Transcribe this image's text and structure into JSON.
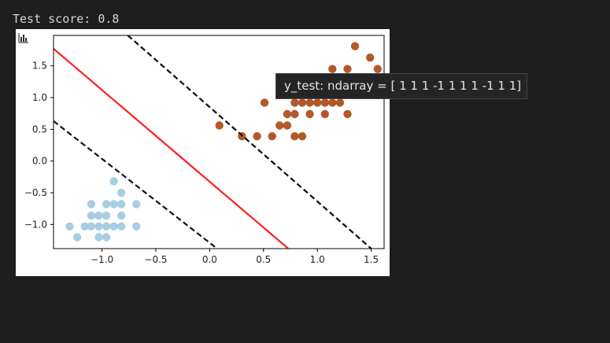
{
  "output": {
    "text": "Test score: 0.8"
  },
  "plot_toolbar": {
    "icon": "bar-chart-icon"
  },
  "tooltip": {
    "text": "y_test: ndarray = [ 1 1 1 -1 1 1 1 -1 1 1]"
  },
  "colors": {
    "class_neg": "#a6cee3",
    "class_pos": "#b15928",
    "decision_boundary": "#ff2020",
    "margin": "#111111",
    "background": "#1e1e1e"
  },
  "chart_data": {
    "type": "scatter",
    "xlim": [
      -1.45,
      1.62
    ],
    "ylim": [
      -1.38,
      1.98
    ],
    "x_ticks": [
      "−1.0",
      "−0.5",
      "0.0",
      "0.5",
      "1.0",
      "1.5"
    ],
    "x_tick_values": [
      -1.0,
      -0.5,
      0.0,
      0.5,
      1.0,
      1.5
    ],
    "y_ticks": [
      "1.5",
      "1.0",
      "0.5",
      "0.0",
      "−0.5",
      "−1.0"
    ],
    "y_tick_values": [
      1.5,
      1.0,
      0.5,
      0.0,
      -0.5,
      -1.0
    ],
    "grid": false,
    "series": [
      {
        "color_key": "class_neg",
        "points": [
          [
            -1.3,
            -1.03
          ],
          [
            -1.23,
            -1.2
          ],
          [
            -1.16,
            -1.03
          ],
          [
            -1.1,
            -0.68
          ],
          [
            -1.1,
            -0.86
          ],
          [
            -1.1,
            -1.03
          ],
          [
            -1.03,
            -0.86
          ],
          [
            -1.03,
            -1.03
          ],
          [
            -1.03,
            -1.2
          ],
          [
            -0.96,
            -0.68
          ],
          [
            -0.96,
            -0.86
          ],
          [
            -0.96,
            -1.03
          ],
          [
            -0.96,
            -1.2
          ],
          [
            -0.89,
            -0.32
          ],
          [
            -0.89,
            -0.68
          ],
          [
            -0.89,
            -1.03
          ],
          [
            -0.82,
            -0.5
          ],
          [
            -0.82,
            -0.68
          ],
          [
            -0.82,
            -0.86
          ],
          [
            -0.82,
            -1.03
          ],
          [
            -0.68,
            -0.68
          ],
          [
            -0.68,
            -1.03
          ]
        ]
      },
      {
        "color_key": "class_pos",
        "points": [
          [
            0.09,
            0.56
          ],
          [
            0.3,
            0.39
          ],
          [
            0.44,
            0.39
          ],
          [
            0.51,
            0.92
          ],
          [
            0.58,
            0.39
          ],
          [
            0.65,
            0.56
          ],
          [
            0.72,
            0.56
          ],
          [
            0.72,
            0.74
          ],
          [
            0.79,
            0.92
          ],
          [
            0.79,
            0.74
          ],
          [
            0.79,
            0.39
          ],
          [
            0.86,
            0.92
          ],
          [
            0.86,
            0.39
          ],
          [
            0.93,
            0.92
          ],
          [
            0.93,
            0.74
          ],
          [
            1.0,
            0.92
          ],
          [
            1.07,
            0.92
          ],
          [
            1.07,
            0.74
          ],
          [
            1.14,
            0.92
          ],
          [
            1.14,
            1.45
          ],
          [
            1.21,
            0.92
          ],
          [
            1.28,
            1.45
          ],
          [
            1.28,
            0.74
          ],
          [
            1.35,
            1.81
          ],
          [
            1.49,
            1.63
          ],
          [
            1.56,
            1.45
          ]
        ]
      }
    ],
    "lines": [
      {
        "style": "dashed",
        "color_key": "margin",
        "x": [
          -1.45,
          0.07
        ],
        "y": [
          0.63,
          -1.38
        ]
      },
      {
        "style": "solid",
        "color_key": "decision_boundary",
        "x": [
          -1.45,
          0.73
        ],
        "y": [
          1.77,
          -1.38
        ]
      },
      {
        "style": "dashed",
        "color_key": "margin",
        "x": [
          -0.76,
          1.5
        ],
        "y": [
          1.98,
          -1.38
        ]
      }
    ]
  }
}
